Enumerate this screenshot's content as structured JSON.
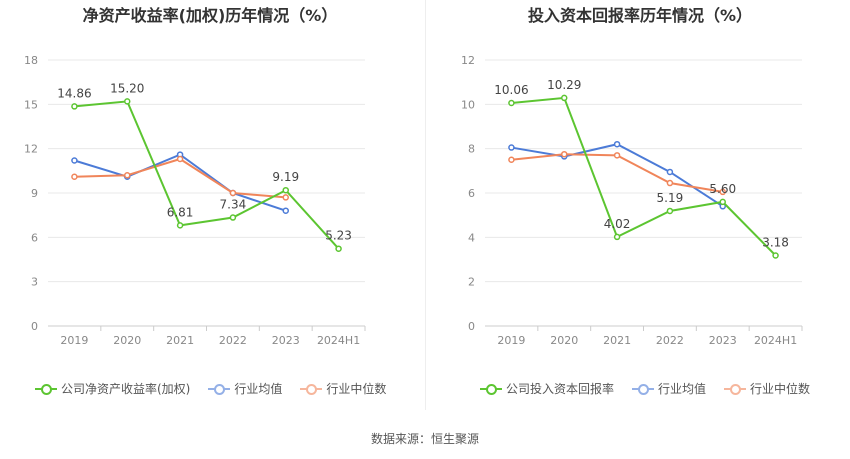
{
  "chart_data": [
    {
      "type": "line",
      "title": "净资产收益率(加权)历年情况（%）",
      "categories": [
        "2019",
        "2020",
        "2021",
        "2022",
        "2023",
        "2024H1"
      ],
      "ylim": [
        0,
        18
      ],
      "yticks": [
        0,
        3,
        6,
        9,
        12,
        15,
        18
      ],
      "grid": true,
      "legend_position": "bottom",
      "series": [
        {
          "name": "公司净资产收益率(加权)",
          "color": "#5CC531",
          "values": [
            14.86,
            15.2,
            6.81,
            7.34,
            9.19,
            5.23
          ],
          "labels": [
            "14.86",
            "15.20",
            "6.81",
            "7.34",
            "9.19",
            "5.23"
          ]
        },
        {
          "name": "行业均值",
          "color": "#4C7BD7",
          "values": [
            11.2,
            10.1,
            11.6,
            9.0,
            7.8,
            null
          ]
        },
        {
          "name": "行业中位数",
          "color": "#F0855A",
          "values": [
            10.1,
            10.2,
            11.3,
            9.0,
            8.7,
            null
          ]
        }
      ]
    },
    {
      "type": "line",
      "title": "投入资本回报率历年情况（%）",
      "categories": [
        "2019",
        "2020",
        "2021",
        "2022",
        "2023",
        "2024H1"
      ],
      "ylim": [
        0,
        12
      ],
      "yticks": [
        0,
        2,
        4,
        6,
        8,
        10,
        12
      ],
      "grid": true,
      "legend_position": "bottom",
      "series": [
        {
          "name": "公司投入资本回报率",
          "color": "#5CC531",
          "values": [
            10.06,
            10.29,
            4.02,
            5.19,
            5.6,
            3.18
          ],
          "labels": [
            "10.06",
            "10.29",
            "4.02",
            "5.19",
            "5.60",
            "3.18"
          ]
        },
        {
          "name": "行业均值",
          "color": "#4C7BD7",
          "values": [
            8.05,
            7.65,
            8.2,
            6.95,
            5.4,
            null
          ]
        },
        {
          "name": "行业中位数",
          "color": "#F0855A",
          "values": [
            7.5,
            7.75,
            7.7,
            6.45,
            6.05,
            null
          ]
        }
      ]
    }
  ],
  "source": "数据来源：恒生聚源"
}
